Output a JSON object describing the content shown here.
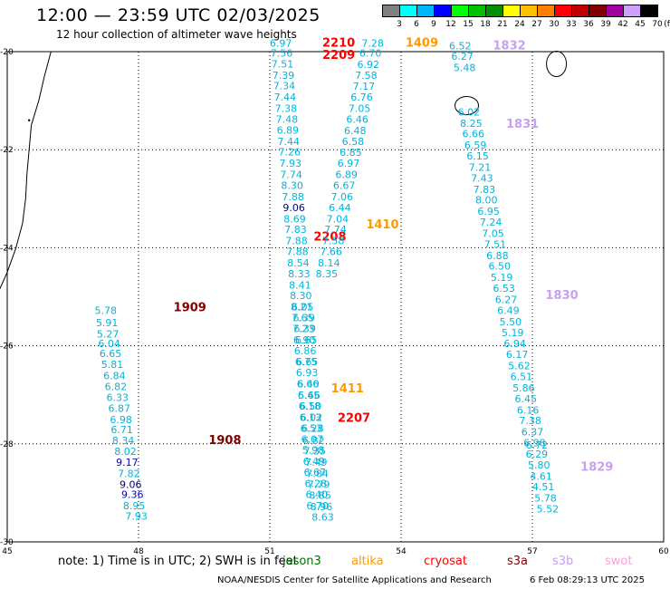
{
  "header": {
    "title": "12:00 — 23:59 UTC 02/03/2025",
    "subtitle": "12 hour collection of altimeter wave heights"
  },
  "legend": {
    "unit": "(ft)",
    "bins": [
      {
        "label": "3",
        "color": "#808080"
      },
      {
        "label": "6",
        "color": "#00ffff"
      },
      {
        "label": "9",
        "color": "#00b4ff"
      },
      {
        "label": "12",
        "color": "#0000ff"
      },
      {
        "label": "15",
        "color": "#00ff00"
      },
      {
        "label": "18",
        "color": "#00c000"
      },
      {
        "label": "21",
        "color": "#009000"
      },
      {
        "label": "24",
        "color": "#ffff00"
      },
      {
        "label": "27",
        "color": "#ffc000"
      },
      {
        "label": "30",
        "color": "#ff8000"
      },
      {
        "label": "33",
        "color": "#ff0000"
      },
      {
        "label": "36",
        "color": "#c00000"
      },
      {
        "label": "39",
        "color": "#800000"
      },
      {
        "label": "42",
        "color": "#a000a0"
      },
      {
        "label": "45",
        "color": "#d0a0ff"
      },
      {
        "label": "70",
        "color": "#000000"
      }
    ]
  },
  "note": {
    "text": "note:  1) Time is in UTC; 2) SWH is in feet",
    "satellites": [
      {
        "name": "jason3",
        "color": "#007000"
      },
      {
        "name": "altika",
        "color": "#ff9900"
      },
      {
        "name": "cryosat",
        "color": "#ff0000"
      },
      {
        "name": "s3a",
        "color": "#800000"
      },
      {
        "name": "s3b",
        "color": "#c8a0f0"
      },
      {
        "name": "swot",
        "color": "#ffa0e0"
      }
    ]
  },
  "footer": {
    "left": "NOAA/NESDIS Center for Satellite Applications and Research",
    "right": "6 Feb 08:29:13 UTC 2025"
  },
  "chart_data": {
    "type": "scatter",
    "xlim": [
      45,
      60
    ],
    "ylim": [
      -30,
      -20
    ],
    "x_ticks": [
      "45",
      "48",
      "51",
      "54",
      "57",
      "60"
    ],
    "y_ticks": [
      "-20",
      "-22",
      "-24",
      "-26",
      "-28",
      "-30"
    ],
    "grid": true,
    "value_colors": {
      "low": "#00b4dc",
      "mid": "#0000c8",
      "high": "#000080"
    },
    "tracks": [
      {
        "name": "s3a_1909_1908",
        "color_label": "#800000",
        "labels": [
          {
            "text": "1909",
            "x": 48.8,
            "y": -25.3
          },
          {
            "text": "1908",
            "x": 49.6,
            "y": -28.0
          }
        ],
        "points": [
          {
            "x": 47.25,
            "y": -25.35,
            "v": "5.78"
          },
          {
            "x": 47.28,
            "y": -25.6,
            "v": "5.91"
          },
          {
            "x": 47.3,
            "y": -25.83,
            "v": "5.27"
          },
          {
            "x": 47.33,
            "y": -26.03,
            "v": "6.04"
          },
          {
            "x": 47.36,
            "y": -26.23,
            "v": "6.65"
          },
          {
            "x": 47.4,
            "y": -26.45,
            "v": "5.81"
          },
          {
            "x": 47.45,
            "y": -26.68,
            "v": "6.84"
          },
          {
            "x": 47.48,
            "y": -26.9,
            "v": "6.82"
          },
          {
            "x": 47.52,
            "y": -27.13,
            "v": "6.33"
          },
          {
            "x": 47.56,
            "y": -27.35,
            "v": "6.87"
          },
          {
            "x": 47.6,
            "y": -27.58,
            "v": "6.98"
          },
          {
            "x": 47.62,
            "y": -27.78,
            "v": "6.71"
          },
          {
            "x": 47.65,
            "y": -28.0,
            "v": "8.34"
          },
          {
            "x": 47.7,
            "y": -28.23,
            "v": "8.02"
          },
          {
            "x": 47.74,
            "y": -28.45,
            "v": "9.17"
          },
          {
            "x": 47.78,
            "y": -28.68,
            "v": "7.82"
          },
          {
            "x": 47.82,
            "y": -28.9,
            "v": "9.06"
          },
          {
            "x": 47.86,
            "y": -29.1,
            "v": "9.36"
          },
          {
            "x": 47.9,
            "y": -29.33,
            "v": "8.95"
          },
          {
            "x": 47.95,
            "y": -29.55,
            "v": "7.93"
          }
        ]
      },
      {
        "name": "cryosat_2210_2208",
        "color_label": "#ff0000",
        "labels": [
          {
            "text": "2210",
            "x": 52.2,
            "y": -19.9
          },
          {
            "text": "2209",
            "x": 52.2,
            "y": -20.15
          },
          {
            "text": "2208",
            "x": 52.0,
            "y": -23.85
          }
        ],
        "points": [
          {
            "x": 51.25,
            "y": -19.9,
            "v": "6.97"
          },
          {
            "x": 51.27,
            "y": -20.1,
            "v": "7.56"
          },
          {
            "x": 51.29,
            "y": -20.32,
            "v": "7.51"
          },
          {
            "x": 51.31,
            "y": -20.55,
            "v": "7.39"
          },
          {
            "x": 51.33,
            "y": -20.77,
            "v": "7.34"
          },
          {
            "x": 51.35,
            "y": -21.0,
            "v": "7.44"
          },
          {
            "x": 51.37,
            "y": -21.23,
            "v": "7.38"
          },
          {
            "x": 51.39,
            "y": -21.45,
            "v": "7.48"
          },
          {
            "x": 51.41,
            "y": -21.67,
            "v": "6.89"
          },
          {
            "x": 51.43,
            "y": -21.9,
            "v": "7.44"
          },
          {
            "x": 51.45,
            "y": -22.12,
            "v": "7.26"
          },
          {
            "x": 51.47,
            "y": -22.35,
            "v": "7.93"
          },
          {
            "x": 51.49,
            "y": -22.58,
            "v": "7.74"
          },
          {
            "x": 51.51,
            "y": -22.8,
            "v": "8.30"
          },
          {
            "x": 51.53,
            "y": -23.03,
            "v": "7.88"
          },
          {
            "x": 51.55,
            "y": -23.25,
            "v": "9.06"
          },
          {
            "x": 51.57,
            "y": -23.48,
            "v": "8.69"
          },
          {
            "x": 51.59,
            "y": -23.7,
            "v": "7.83"
          },
          {
            "x": 51.61,
            "y": -23.93,
            "v": "7.88"
          },
          {
            "x": 51.63,
            "y": -24.15,
            "v": "7.88"
          },
          {
            "x": 51.65,
            "y": -24.38,
            "v": "8.54"
          },
          {
            "x": 51.67,
            "y": -24.6,
            "v": "8.33"
          },
          {
            "x": 51.69,
            "y": -24.83,
            "v": "8.41"
          },
          {
            "x": 51.71,
            "y": -25.05,
            "v": "8.30"
          },
          {
            "x": 51.73,
            "y": -25.28,
            "v": "8.21"
          },
          {
            "x": 51.75,
            "y": -25.5,
            "v": "7.65"
          },
          {
            "x": 51.77,
            "y": -25.72,
            "v": "7.23"
          },
          {
            "x": 51.79,
            "y": -25.95,
            "v": "6.90"
          },
          {
            "x": 51.81,
            "y": -26.17,
            "v": "6.86"
          },
          {
            "x": 51.83,
            "y": -26.4,
            "v": "6.75"
          },
          {
            "x": 51.85,
            "y": -26.62,
            "v": "6.93"
          },
          {
            "x": 51.87,
            "y": -26.85,
            "v": "6.66"
          },
          {
            "x": 51.89,
            "y": -27.08,
            "v": "6.45"
          },
          {
            "x": 51.91,
            "y": -27.3,
            "v": "6.18"
          },
          {
            "x": 51.93,
            "y": -27.53,
            "v": "6.13"
          },
          {
            "x": 51.95,
            "y": -27.75,
            "v": "6.53"
          },
          {
            "x": 51.97,
            "y": -27.98,
            "v": "6.07"
          },
          {
            "x": 51.99,
            "y": -28.2,
            "v": "5.98"
          },
          {
            "x": 52.01,
            "y": -28.43,
            "v": "6.49"
          },
          {
            "x": 52.03,
            "y": -28.65,
            "v": "6.67"
          },
          {
            "x": 52.05,
            "y": -28.88,
            "v": "6.28"
          },
          {
            "x": 52.07,
            "y": -29.1,
            "v": "6.40"
          },
          {
            "x": 52.09,
            "y": -29.33,
            "v": "6.70"
          }
        ]
      },
      {
        "name": "cryosat_2207",
        "color_label": "#ff0000",
        "labels": [
          {
            "text": "2207",
            "x": 52.55,
            "y": -27.55
          }
        ],
        "points": [
          {
            "x": 51.75,
            "y": -25.28,
            "v": "6.05"
          },
          {
            "x": 51.78,
            "y": -25.5,
            "v": "6.39"
          },
          {
            "x": 51.8,
            "y": -25.72,
            "v": "6.39"
          },
          {
            "x": 51.83,
            "y": -25.95,
            "v": "6.65"
          },
          {
            "x": 51.85,
            "y": -26.4,
            "v": "6.65"
          },
          {
            "x": 51.88,
            "y": -26.85,
            "v": "6.40"
          },
          {
            "x": 51.9,
            "y": -27.08,
            "v": "5.66"
          },
          {
            "x": 51.93,
            "y": -27.3,
            "v": "6.50"
          },
          {
            "x": 51.95,
            "y": -27.53,
            "v": "6.02"
          },
          {
            "x": 51.98,
            "y": -27.75,
            "v": "6.28"
          },
          {
            "x": 52.0,
            "y": -28.0,
            "v": "6.82"
          },
          {
            "x": 52.03,
            "y": -28.22,
            "v": "7.35"
          },
          {
            "x": 52.06,
            "y": -28.45,
            "v": "7.49"
          },
          {
            "x": 52.09,
            "y": -28.68,
            "v": "7.84"
          },
          {
            "x": 52.12,
            "y": -28.9,
            "v": "7.79"
          },
          {
            "x": 52.15,
            "y": -29.12,
            "v": "8.85"
          },
          {
            "x": 52.18,
            "y": -29.35,
            "v": "8.96"
          },
          {
            "x": 52.21,
            "y": -29.57,
            "v": "8.63"
          }
        ]
      },
      {
        "name": "altika_1409_1411",
        "color_label": "#ff9900",
        "labels": [
          {
            "text": "1409",
            "x": 54.1,
            "y": -19.9
          },
          {
            "text": "1410",
            "x": 53.2,
            "y": -23.6
          },
          {
            "text": "1411",
            "x": 52.4,
            "y": -26.95
          }
        ],
        "points": [
          {
            "x": 53.35,
            "y": -19.9,
            "v": "7.28"
          },
          {
            "x": 53.3,
            "y": -20.1,
            "v": "6.70"
          },
          {
            "x": 53.25,
            "y": -20.33,
            "v": "6.92"
          },
          {
            "x": 53.2,
            "y": -20.55,
            "v": "7.58"
          },
          {
            "x": 53.15,
            "y": -20.78,
            "v": "7.17"
          },
          {
            "x": 53.1,
            "y": -21.0,
            "v": "6.76"
          },
          {
            "x": 53.05,
            "y": -21.23,
            "v": "7.05"
          },
          {
            "x": 53.0,
            "y": -21.45,
            "v": "6.46"
          },
          {
            "x": 52.95,
            "y": -21.68,
            "v": "6.48"
          },
          {
            "x": 52.9,
            "y": -21.9,
            "v": "6.58"
          },
          {
            "x": 52.85,
            "y": -22.13,
            "v": "6.85"
          },
          {
            "x": 52.8,
            "y": -22.35,
            "v": "6.97"
          },
          {
            "x": 52.75,
            "y": -22.58,
            "v": "6.89"
          },
          {
            "x": 52.7,
            "y": -22.8,
            "v": "6.67"
          },
          {
            "x": 52.65,
            "y": -23.03,
            "v": "7.06"
          },
          {
            "x": 52.6,
            "y": -23.25,
            "v": "6.44"
          },
          {
            "x": 52.55,
            "y": -23.48,
            "v": "7.04"
          },
          {
            "x": 52.5,
            "y": -23.7,
            "v": "7.74"
          },
          {
            "x": 52.45,
            "y": -23.93,
            "v": "7.58"
          },
          {
            "x": 52.4,
            "y": -24.15,
            "v": "7.66"
          },
          {
            "x": 52.35,
            "y": -24.38,
            "v": "8.14"
          },
          {
            "x": 52.3,
            "y": -24.6,
            "v": "8.35"
          }
        ]
      },
      {
        "name": "s3b_1832_1829",
        "color_label": "#c8a0f0",
        "labels": [
          {
            "text": "1832",
            "x": 56.1,
            "y": -19.95
          },
          {
            "text": "1831",
            "x": 56.4,
            "y": -21.55
          },
          {
            "text": "1830",
            "x": 57.3,
            "y": -25.05
          },
          {
            "text": "1829",
            "x": 58.1,
            "y": -28.55
          }
        ],
        "points": [
          {
            "x": 55.35,
            "y": -19.95,
            "v": "6.52"
          },
          {
            "x": 55.4,
            "y": -20.17,
            "v": "6.27"
          },
          {
            "x": 55.45,
            "y": -20.4,
            "v": "5.48"
          },
          {
            "x": 55.55,
            "y": -21.3,
            "v": "6.02"
          },
          {
            "x": 55.6,
            "y": -21.53,
            "v": "8.25"
          },
          {
            "x": 55.65,
            "y": -21.75,
            "v": "6.66"
          },
          {
            "x": 55.7,
            "y": -21.98,
            "v": "6.59"
          },
          {
            "x": 55.75,
            "y": -22.2,
            "v": "6.15"
          },
          {
            "x": 55.8,
            "y": -22.43,
            "v": "7.21"
          },
          {
            "x": 55.85,
            "y": -22.65,
            "v": "7.43"
          },
          {
            "x": 55.9,
            "y": -22.88,
            "v": "7.83"
          },
          {
            "x": 55.95,
            "y": -23.1,
            "v": "8.00"
          },
          {
            "x": 56.0,
            "y": -23.33,
            "v": "6.95"
          },
          {
            "x": 56.05,
            "y": -23.55,
            "v": "7.24"
          },
          {
            "x": 56.1,
            "y": -23.78,
            "v": "7.05"
          },
          {
            "x": 56.15,
            "y": -24.0,
            "v": "7.51"
          },
          {
            "x": 56.2,
            "y": -24.23,
            "v": "6.88"
          },
          {
            "x": 56.25,
            "y": -24.45,
            "v": "6.50"
          },
          {
            "x": 56.3,
            "y": -24.68,
            "v": "5.19"
          },
          {
            "x": 56.35,
            "y": -24.9,
            "v": "6.53"
          },
          {
            "x": 56.4,
            "y": -25.13,
            "v": "6.27"
          },
          {
            "x": 56.45,
            "y": -25.35,
            "v": "6.49"
          },
          {
            "x": 56.5,
            "y": -25.58,
            "v": "5.50"
          },
          {
            "x": 56.55,
            "y": -25.8,
            "v": "5.19"
          },
          {
            "x": 56.6,
            "y": -26.03,
            "v": "6.94"
          },
          {
            "x": 56.65,
            "y": -26.25,
            "v": "6.17"
          },
          {
            "x": 56.7,
            "y": -26.48,
            "v": "5.62"
          },
          {
            "x": 56.75,
            "y": -26.7,
            "v": "6.51"
          },
          {
            "x": 56.8,
            "y": -26.93,
            "v": "5.86"
          },
          {
            "x": 56.85,
            "y": -27.15,
            "v": "6.45"
          },
          {
            "x": 56.9,
            "y": -27.38,
            "v": "6.16"
          },
          {
            "x": 56.95,
            "y": -27.6,
            "v": "7.38"
          },
          {
            "x": 57.0,
            "y": -27.83,
            "v": "6.37"
          },
          {
            "x": 57.05,
            "y": -28.05,
            "v": "6.98"
          },
          {
            "x": 57.1,
            "y": -28.28,
            "v": "6.29"
          },
          {
            "x": 57.15,
            "y": -28.5,
            "v": "5.80"
          },
          {
            "x": 57.2,
            "y": -28.73,
            "v": "4.61"
          },
          {
            "x": 57.25,
            "y": -28.95,
            "v": "4.51"
          },
          {
            "x": 57.3,
            "y": -29.18,
            "v": "5.78"
          },
          {
            "x": 57.35,
            "y": -29.4,
            "v": "5.52"
          },
          {
            "x": 57.1,
            "y": -28.1,
            "v": "6.72"
          }
        ]
      }
    ]
  }
}
